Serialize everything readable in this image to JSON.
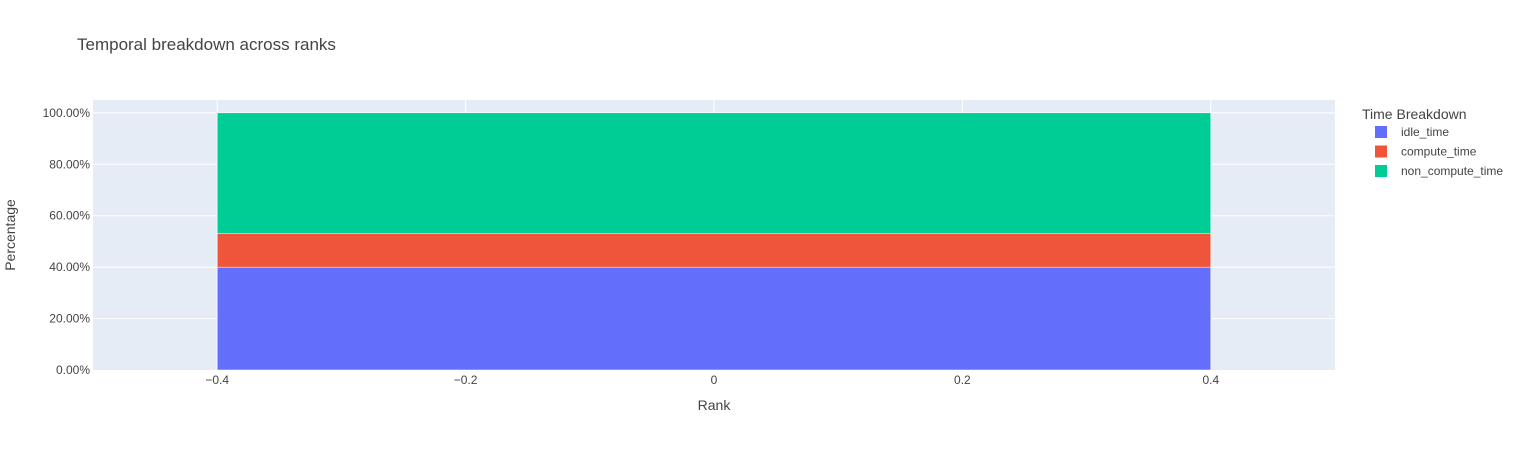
{
  "chart_data": {
    "type": "bar",
    "barmode": "stack",
    "title": "Temporal breakdown across ranks",
    "xlabel": "Rank",
    "ylabel": "Percentage",
    "x": [
      0
    ],
    "bar_width": 0.8,
    "xlim": [
      -0.5,
      0.5
    ],
    "ylim": [
      0,
      1.05
    ],
    "xticks": [
      -0.4,
      -0.2,
      0,
      0.2,
      0.4
    ],
    "xtick_labels": [
      "−0.4",
      "−0.2",
      "0",
      "0.2",
      "0.4"
    ],
    "yticks": [
      0,
      0.2,
      0.4,
      0.6,
      0.8,
      1.0
    ],
    "ytick_labels": [
      "0.00%",
      "20.00%",
      "40.00%",
      "60.00%",
      "80.00%",
      "100.00%"
    ],
    "grid": true,
    "legend": {
      "title": "Time Breakdown",
      "placement": "right"
    },
    "series": [
      {
        "name": "idle_time",
        "values": [
          0.4
        ],
        "color": "#636efa"
      },
      {
        "name": "compute_time",
        "values": [
          0.13
        ],
        "color": "#ef553b"
      },
      {
        "name": "non_compute_time",
        "values": [
          0.47
        ],
        "color": "#00cc96"
      }
    ],
    "plot_bgcolor": "#e5ecf6"
  }
}
